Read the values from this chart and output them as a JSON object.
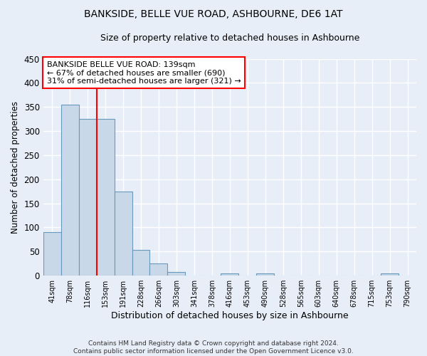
{
  "title": "BANKSIDE, BELLE VUE ROAD, ASHBOURNE, DE6 1AT",
  "subtitle": "Size of property relative to detached houses in Ashbourne",
  "xlabel": "Distribution of detached houses by size in Ashbourne",
  "ylabel": "Number of detached properties",
  "bar_color": "#c8d8e8",
  "bar_edge_color": "#6699bb",
  "background_color": "#e8eef8",
  "fig_background_color": "#e8eef8",
  "gridcolor": "#ffffff",
  "tick_labels": [
    "41sqm",
    "78sqm",
    "116sqm",
    "153sqm",
    "191sqm",
    "228sqm",
    "266sqm",
    "303sqm",
    "341sqm",
    "378sqm",
    "416sqm",
    "453sqm",
    "490sqm",
    "528sqm",
    "565sqm",
    "603sqm",
    "640sqm",
    "678sqm",
    "715sqm",
    "753sqm",
    "790sqm"
  ],
  "bar_values": [
    90,
    355,
    325,
    325,
    175,
    53,
    25,
    8,
    0,
    0,
    4,
    0,
    5,
    0,
    0,
    0,
    0,
    0,
    0,
    5,
    0
  ],
  "ylim": [
    0,
    450
  ],
  "yticks": [
    0,
    50,
    100,
    150,
    200,
    250,
    300,
    350,
    400,
    450
  ],
  "annotation_text_line1": "BANKSIDE BELLE VUE ROAD: 139sqm",
  "annotation_text_line2": "← 67% of detached houses are smaller (690)",
  "annotation_text_line3": "31% of semi-detached houses are larger (321) →",
  "red_line_x": 2.5,
  "footer_line1": "Contains HM Land Registry data © Crown copyright and database right 2024.",
  "footer_line2": "Contains public sector information licensed under the Open Government Licence v3.0."
}
